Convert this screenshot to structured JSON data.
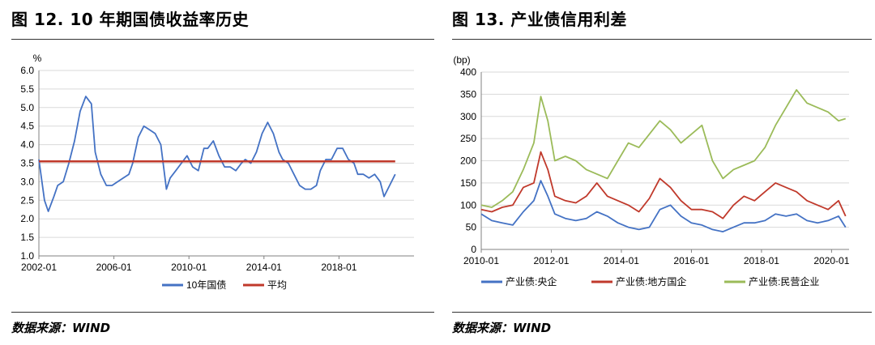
{
  "left_panel": {
    "title": "图 12.  10 年期国债收益率历史",
    "source": "数据来源：WIND"
  },
  "right_panel": {
    "title": "图 13. 产业债信用利差",
    "source": "数据来源：WIND"
  },
  "colors": {
    "blue": "#4472C4",
    "red": "#C0392B",
    "green": "#9BBB59",
    "grid": "#d9d9d9"
  },
  "chart_data": [
    {
      "type": "line",
      "ylabel": "%",
      "ylim": [
        1.0,
        6.0
      ],
      "yticks": [
        "1.0",
        "1.5",
        "2.0",
        "2.5",
        "3.0",
        "3.5",
        "4.0",
        "4.5",
        "5.0",
        "5.5",
        "6.0"
      ],
      "xlim": [
        2002.0,
        2022.0
      ],
      "xticks": [
        {
          "x": 2002.0,
          "label": "2002-01"
        },
        {
          "x": 2006.0,
          "label": "2006-01"
        },
        {
          "x": 2010.0,
          "label": "2010-01"
        },
        {
          "x": 2014.0,
          "label": "2014-01"
        },
        {
          "x": 2018.0,
          "label": "2018-01"
        }
      ],
      "grid": true,
      "legend": "bottom",
      "series": [
        {
          "name": "10年国债",
          "color": "#4472C4",
          "x": [
            2002.0,
            2002.3,
            2002.5,
            2002.8,
            2003.0,
            2003.3,
            2003.6,
            2003.9,
            2004.2,
            2004.5,
            2004.8,
            2005.0,
            2005.3,
            2005.6,
            2005.9,
            2006.2,
            2006.5,
            2006.8,
            2007.0,
            2007.3,
            2007.6,
            2007.9,
            2008.2,
            2008.5,
            2008.8,
            2009.0,
            2009.3,
            2009.6,
            2009.9,
            2010.2,
            2010.5,
            2010.8,
            2011.0,
            2011.3,
            2011.6,
            2011.9,
            2012.2,
            2012.5,
            2012.8,
            2013.0,
            2013.3,
            2013.6,
            2013.9,
            2014.2,
            2014.5,
            2014.8,
            2015.0,
            2015.3,
            2015.6,
            2015.9,
            2016.2,
            2016.5,
            2016.8,
            2017.0,
            2017.3,
            2017.6,
            2017.9,
            2018.2,
            2018.5,
            2018.8,
            2019.0,
            2019.3,
            2019.6,
            2019.9,
            2020.2,
            2020.4,
            2020.7,
            2021.0
          ],
          "values": [
            3.6,
            2.5,
            2.2,
            2.6,
            2.9,
            3.0,
            3.5,
            4.1,
            4.9,
            5.3,
            5.1,
            3.8,
            3.2,
            2.9,
            2.9,
            3.0,
            3.1,
            3.2,
            3.5,
            4.2,
            4.5,
            4.4,
            4.3,
            4.0,
            2.8,
            3.1,
            3.3,
            3.5,
            3.7,
            3.4,
            3.3,
            3.9,
            3.9,
            4.1,
            3.7,
            3.4,
            3.4,
            3.3,
            3.5,
            3.6,
            3.5,
            3.8,
            4.3,
            4.6,
            4.3,
            3.8,
            3.6,
            3.5,
            3.2,
            2.9,
            2.8,
            2.8,
            2.9,
            3.3,
            3.6,
            3.6,
            3.9,
            3.9,
            3.6,
            3.5,
            3.2,
            3.2,
            3.1,
            3.2,
            3.0,
            2.6,
            2.9,
            3.2
          ]
        },
        {
          "name": "平均",
          "color": "#C0392B",
          "x": [
            2002.0,
            2021.0
          ],
          "values": [
            3.55,
            3.55
          ]
        }
      ]
    },
    {
      "type": "line",
      "ylabel": "(bp)",
      "ylim": [
        0,
        400
      ],
      "yticks": [
        "0",
        "50",
        "100",
        "150",
        "200",
        "250",
        "300",
        "350",
        "400"
      ],
      "xlim": [
        2010.0,
        2020.5
      ],
      "xticks": [
        {
          "x": 2010.0,
          "label": "2010-01"
        },
        {
          "x": 2012.0,
          "label": "2012-01"
        },
        {
          "x": 2014.0,
          "label": "2014-01"
        },
        {
          "x": 2016.0,
          "label": "2016-01"
        },
        {
          "x": 2018.0,
          "label": "2018-01"
        },
        {
          "x": 2020.0,
          "label": "2020-01"
        }
      ],
      "grid": true,
      "legend": "bottom",
      "series": [
        {
          "name": "产业债:央企",
          "color": "#4472C4",
          "x": [
            2010.0,
            2010.3,
            2010.6,
            2010.9,
            2011.2,
            2011.5,
            2011.7,
            2011.9,
            2012.1,
            2012.4,
            2012.7,
            2013.0,
            2013.3,
            2013.6,
            2013.9,
            2014.2,
            2014.5,
            2014.8,
            2015.1,
            2015.4,
            2015.7,
            2016.0,
            2016.3,
            2016.6,
            2016.9,
            2017.2,
            2017.5,
            2017.8,
            2018.1,
            2018.4,
            2018.7,
            2019.0,
            2019.3,
            2019.6,
            2019.9,
            2020.2,
            2020.4
          ],
          "values": [
            80,
            65,
            60,
            55,
            85,
            110,
            155,
            120,
            80,
            70,
            65,
            70,
            85,
            75,
            60,
            50,
            45,
            50,
            90,
            100,
            75,
            60,
            55,
            45,
            40,
            50,
            60,
            60,
            65,
            80,
            75,
            80,
            65,
            60,
            65,
            75,
            50
          ]
        },
        {
          "name": "产业债:地方国企",
          "color": "#C0392B",
          "x": [
            2010.0,
            2010.3,
            2010.6,
            2010.9,
            2011.2,
            2011.5,
            2011.7,
            2011.9,
            2012.1,
            2012.4,
            2012.7,
            2013.0,
            2013.3,
            2013.6,
            2013.9,
            2014.2,
            2014.5,
            2014.8,
            2015.1,
            2015.4,
            2015.7,
            2016.0,
            2016.3,
            2016.6,
            2016.9,
            2017.2,
            2017.5,
            2017.8,
            2018.1,
            2018.4,
            2018.7,
            2019.0,
            2019.3,
            2019.6,
            2019.9,
            2020.2,
            2020.4
          ],
          "values": [
            90,
            85,
            95,
            100,
            140,
            150,
            220,
            180,
            120,
            110,
            105,
            120,
            150,
            120,
            110,
            100,
            85,
            115,
            160,
            140,
            110,
            90,
            90,
            85,
            70,
            100,
            120,
            110,
            130,
            150,
            140,
            130,
            110,
            100,
            90,
            110,
            75
          ]
        },
        {
          "name": "产业债:民营企业",
          "color": "#9BBB59",
          "x": [
            2010.0,
            2010.3,
            2010.6,
            2010.9,
            2011.2,
            2011.5,
            2011.7,
            2011.9,
            2012.1,
            2012.4,
            2012.7,
            2013.0,
            2013.3,
            2013.6,
            2013.9,
            2014.2,
            2014.5,
            2014.8,
            2015.1,
            2015.4,
            2015.7,
            2016.0,
            2016.3,
            2016.6,
            2016.9,
            2017.2,
            2017.5,
            2017.8,
            2018.1,
            2018.4,
            2018.7,
            2019.0,
            2019.3,
            2019.6,
            2019.9,
            2020.2,
            2020.4
          ],
          "values": [
            100,
            95,
            110,
            130,
            180,
            240,
            345,
            290,
            200,
            210,
            200,
            180,
            170,
            160,
            200,
            240,
            230,
            260,
            290,
            270,
            240,
            260,
            280,
            200,
            160,
            180,
            190,
            200,
            230,
            280,
            320,
            360,
            330,
            320,
            310,
            290,
            295
          ]
        }
      ]
    }
  ]
}
